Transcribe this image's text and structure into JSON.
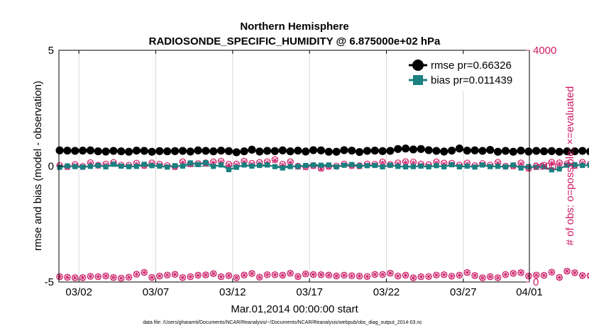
{
  "chart_data": {
    "type": "line",
    "title": "Northern Hemisphere",
    "subtitle": "RADIOSONDE_SPECIFIC_HUMIDITY @ 6.875000e+02 hPa",
    "xlabel": "Mar.01,2014 00:00:00 start",
    "ylabel": "rmse and bias (model - observation)",
    "ylabel_right": "# of obs: o=possible; ×=evaluated",
    "footnote": "data file: /Users/gharamti/Documents/NCAR/Reanalysis/~/Documents/NCAR/Reanalysis/webpub/obs_diag_output_2014-03.nc",
    "xlim": [
      0.7,
      31.3
    ],
    "ylim": [
      -5,
      5
    ],
    "ylim_right": [
      0,
      4000
    ],
    "x_ticks": [
      {
        "value": 2,
        "label": "03/02"
      },
      {
        "value": 7,
        "label": "03/07"
      },
      {
        "value": 12,
        "label": "03/12"
      },
      {
        "value": 17,
        "label": "03/17"
      },
      {
        "value": 22,
        "label": "03/22"
      },
      {
        "value": 27,
        "label": "03/27"
      },
      {
        "value": 32,
        "label": "04/01"
      }
    ],
    "y_ticks": [
      {
        "value": -5,
        "label": "-5"
      },
      {
        "value": 0,
        "label": "0"
      },
      {
        "value": 5,
        "label": "5"
      }
    ],
    "y_ticks_right": [
      {
        "value": 0,
        "label": "0"
      },
      {
        "value": 2000,
        "label": "2000"
      },
      {
        "value": 4000,
        "label": "4000"
      }
    ],
    "grid": true,
    "legend_position": "top-right",
    "x_start": 0.75,
    "x_step": 0.5,
    "series": [
      {
        "name": "rmse pr=0.66326",
        "color": "#000000",
        "marker": "circle",
        "values": [
          0.68,
          0.67,
          0.66,
          0.67,
          0.68,
          0.64,
          0.63,
          0.66,
          0.64,
          0.62,
          0.67,
          0.66,
          0.62,
          0.65,
          0.64,
          0.65,
          0.66,
          0.63,
          0.68,
          0.66,
          0.64,
          0.67,
          0.65,
          0.6,
          0.64,
          0.71,
          0.63,
          0.66,
          0.65,
          0.68,
          0.64,
          0.67,
          0.63,
          0.69,
          0.68,
          0.62,
          0.62,
          0.69,
          0.67,
          0.61,
          0.66,
          0.67,
          0.65,
          0.66,
          0.74,
          0.76,
          0.72,
          0.74,
          0.69,
          0.66,
          0.63,
          0.67,
          0.76,
          0.67,
          0.68,
          0.66,
          0.7,
          0.62,
          0.66,
          0.62,
          0.67,
          0.63,
          0.66,
          0.64,
          0.65,
          0.62,
          0.64,
          0.64,
          0.66,
          0.63,
          0.65,
          0.62,
          0.62,
          0.66,
          0.67,
          0.69,
          0.65,
          0.63,
          0.66,
          0.69,
          0.64,
          0.66,
          0.63,
          0.64,
          0.66,
          0.61,
          0.63,
          0.61,
          0.62,
          0.6,
          0.65,
          0.6,
          0.65,
          0.66,
          0.67,
          0.69,
          0.71,
          0.68,
          0.72,
          0.72,
          0.72,
          0.69,
          0.5,
          0.53,
          0.57,
          0.59,
          0.63,
          0.55,
          0.68,
          0.55,
          0.63,
          0.72,
          0.71,
          0.72,
          0.66,
          0.63,
          0.66,
          0.62,
          0.62,
          0.52,
          0.66,
          0.63,
          0.73
        ]
      },
      {
        "name": "bias pr=0.011439",
        "color": "#1a8080",
        "marker": "square",
        "values": [
          -0.05,
          0.01,
          -0.02,
          -0.04,
          -0.01,
          0.03,
          -0.03,
          0.08,
          0.0,
          -0.02,
          -0.01,
          0.08,
          0.02,
          0.0,
          -0.04,
          0.02,
          0.0,
          0.14,
          0.07,
          0.15,
          -0.01,
          0.05,
          -0.15,
          -0.05,
          0.05,
          0.0,
          0.03,
          0.05,
          -0.02,
          -0.08,
          -0.02,
          -0.01,
          0.03,
          0.05,
          0.04,
          0.05,
          -0.03,
          0.04,
          0.07,
          0.01,
          0.02,
          0.03,
          -0.03,
          0.04,
          -0.01,
          -0.03,
          -0.02,
          0.0,
          -0.03,
          0.02,
          -0.03,
          0.06,
          -0.03,
          0.0,
          -0.04,
          0.05,
          -0.02,
          -0.01,
          -0.03,
          0.05,
          -0.08,
          -0.02,
          -0.05,
          -0.03,
          -0.16,
          -0.12,
          0.04,
          0.06,
          0.03,
          0.04,
          -0.02,
          -0.02,
          0.04,
          0.05,
          0.03,
          0.02,
          -0.01,
          -0.01,
          0.04,
          0.05,
          0.03,
          -0.08,
          0.0,
          0.03,
          0.0,
          0.03,
          0.0,
          0.06,
          -0.07,
          0.02,
          0.01,
          0.02,
          0.04,
          0.07,
          0.01,
          -0.02,
          0.04,
          0.06,
          0.02,
          0.07,
          0.03,
          0.06,
          0.0,
          0.03,
          0.0,
          -0.08,
          -0.04,
          -0.08,
          0.03,
          -0.02,
          -0.02,
          0.04,
          0.02,
          -0.06,
          0.05,
          -0.04,
          -0.02,
          0.0,
          0.05,
          0.05,
          0.05,
          0.04,
          0.05
        ]
      },
      {
        "name": "obs possible",
        "color": "#cc1a66",
        "marker": "open-circle",
        "axis": "right",
        "values": [
          2012,
          1994,
          2029,
          1995,
          2059,
          2017,
          2035,
          2062,
          2019,
          2014,
          2051,
          2014,
          2055,
          2033,
          2009,
          1993,
          2076,
          2042,
          2044,
          2057,
          2075,
          2084,
          2033,
          2037,
          2086,
          2049,
          2063,
          2077,
          2114,
          2033,
          2076,
          2000,
          1991,
          2011,
          1968,
          2000,
          2002,
          2036,
          2014,
          2007,
          2037,
          2032,
          2072,
          2027,
          2056,
          2076,
          2071,
          2036,
          2024,
          2073,
          2052,
          2050,
          2018,
          2054,
          2009,
          2045,
          2019,
          2065,
          2000,
          2006,
          2055,
          1967,
          1998,
          2014,
          2067,
          2057,
          2039,
          2013,
          2065,
          2032,
          2026,
          2024,
          2057,
          1990,
          2026,
          2008,
          2072,
          2040,
          1996,
          2014,
          2001,
          2000,
          1991,
          1992,
          1999,
          2012,
          1982,
          2032,
          2003,
          2028,
          2018,
          2028,
          2035,
          1994,
          2027,
          2007,
          2005,
          2026,
          2060,
          2036,
          2057,
          2036,
          2067,
          2049,
          2093,
          2022,
          2044,
          2036,
          2078,
          2035,
          2036,
          2012,
          2005,
          2014,
          2040,
          1980,
          1982,
          1939,
          1970,
          1987,
          2015,
          2029,
          2041
        ]
      },
      {
        "name": "obs evaluated",
        "color": "#cc1a66",
        "marker": "x",
        "axis": "right",
        "values": [
          1997,
          1979,
          2014,
          1980,
          2044,
          2002,
          2020,
          2047,
          2004,
          1999,
          2036,
          1999,
          2040,
          2018,
          1994,
          1978,
          2061,
          2027,
          2029,
          2042,
          2060,
          2069,
          2018,
          2022,
          2071,
          2034,
          2048,
          2062,
          2099,
          2018,
          2061,
          1985,
          1976,
          1996,
          1953,
          1985,
          1987,
          2021,
          1999,
          1992,
          2022,
          2017,
          2057,
          2012,
          2041,
          2061,
          2056,
          2021,
          2009,
          2058,
          2037,
          2035,
          2003,
          2039,
          1994,
          2030,
          2004,
          2050,
          1985,
          1991,
          2040,
          1952,
          1983,
          1999,
          2052,
          2042,
          2024,
          1998,
          2050,
          2017,
          2011,
          2009,
          2042,
          1975,
          2011,
          1993,
          2057,
          2025,
          1981,
          1999,
          1986,
          1985,
          1976,
          1977,
          1984,
          1997,
          1967,
          2017,
          1988,
          2013,
          2003,
          2013,
          2020,
          1979,
          2012,
          1992,
          1990,
          2011,
          2045,
          2021,
          2042,
          2021,
          2052,
          2034,
          2078,
          2007,
          2029,
          2021,
          2063,
          2020,
          2021,
          1997,
          1990,
          1999,
          2025,
          1965,
          1967,
          1924,
          1955,
          1972,
          2000,
          2014,
          2026
        ]
      },
      {
        "name": "obs low",
        "color": "#cc1a66",
        "marker": "open-circle",
        "axis": "right",
        "values": [
          92,
          81,
          73,
          75,
          98,
          91,
          104,
          76,
          65,
          82,
          134,
          165,
          80,
          103,
          120,
          131,
          77,
          91,
          118,
          122,
          144,
          91,
          110,
          75,
          119,
          147,
          83,
          126,
          126,
          118,
          150,
          93,
          139,
          128,
          125,
          119,
          104,
          117,
          108,
          101,
          94,
          130,
          130,
          151,
          103,
          118,
          72,
          91,
          94,
          120,
          126,
          100,
          117,
          163,
          112,
          72,
          92,
          74,
          129,
          148,
          162,
          102,
          120,
          114,
          169,
          80,
          187,
          161,
          112,
          109,
          100,
          162,
          132,
          118,
          94,
          86,
          118,
          108,
          117,
          73,
          69,
          81,
          118,
          118,
          94,
          113,
          105,
          127,
          101,
          150,
          125,
          115,
          92,
          144,
          99,
          93,
          84,
          161,
          133,
          91,
          135,
          110,
          140,
          141,
          111,
          108,
          128,
          102,
          89,
          101,
          69,
          125,
          120,
          77,
          148,
          119,
          147,
          119,
          78,
          108,
          139,
          88,
          24
        ]
      }
    ]
  }
}
